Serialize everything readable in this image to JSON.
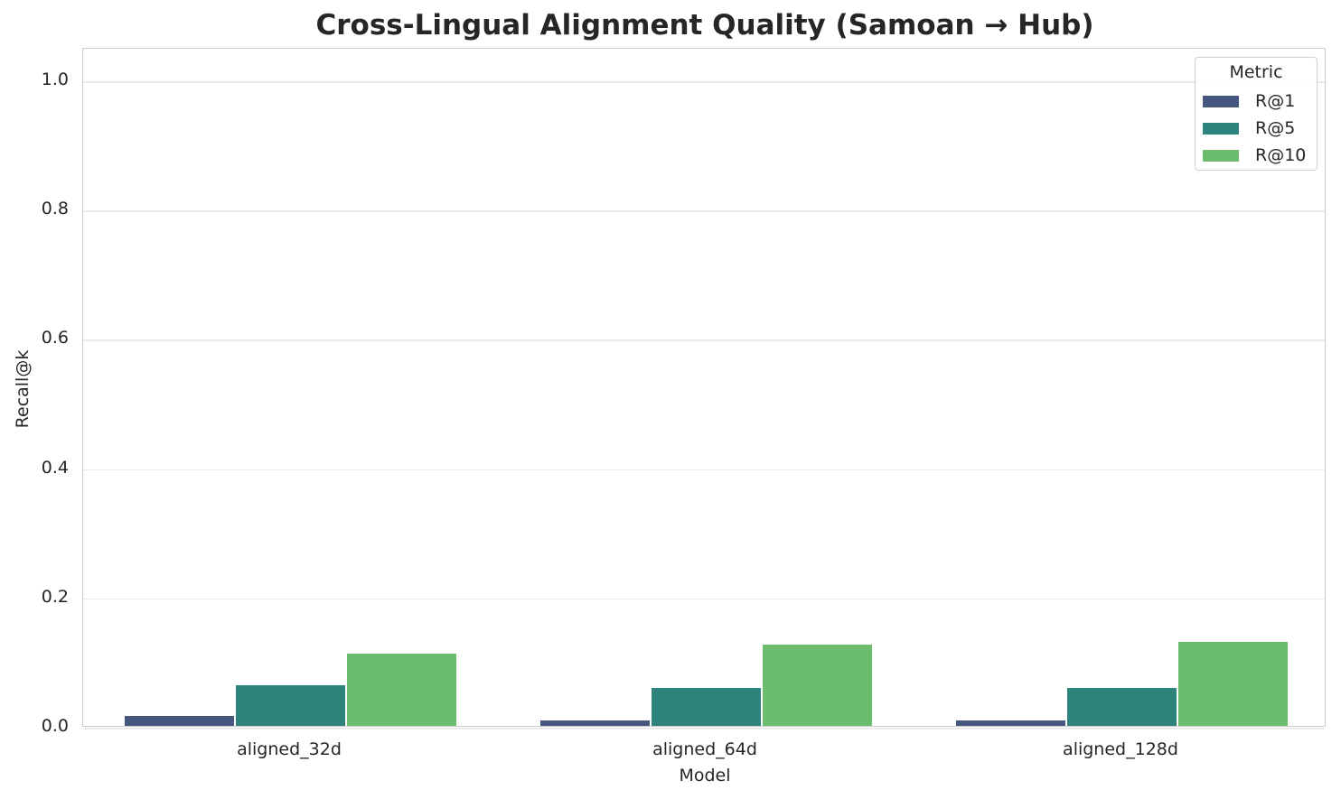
{
  "chart_data": {
    "type": "bar",
    "title": "Cross-Lingual Alignment Quality (Samoan → Hub)",
    "xlabel": "Model",
    "ylabel": "Recall@k",
    "ylim": [
      0,
      1.05
    ],
    "yticks": [
      "0.0",
      "0.2",
      "0.4",
      "0.6",
      "0.8",
      "1.0"
    ],
    "categories": [
      "aligned_32d",
      "aligned_64d",
      "aligned_128d"
    ],
    "series": [
      {
        "name": "R@1",
        "color": "#46577f",
        "values": [
          0.016,
          0.008,
          0.008
        ]
      },
      {
        "name": "R@5",
        "color": "#2e837c",
        "values": [
          0.063,
          0.059,
          0.059
        ]
      },
      {
        "name": "R@10",
        "color": "#6bbd6d",
        "values": [
          0.112,
          0.126,
          0.13
        ]
      }
    ],
    "legend": {
      "title": "Metric",
      "position": "upper right"
    },
    "grid": true
  }
}
